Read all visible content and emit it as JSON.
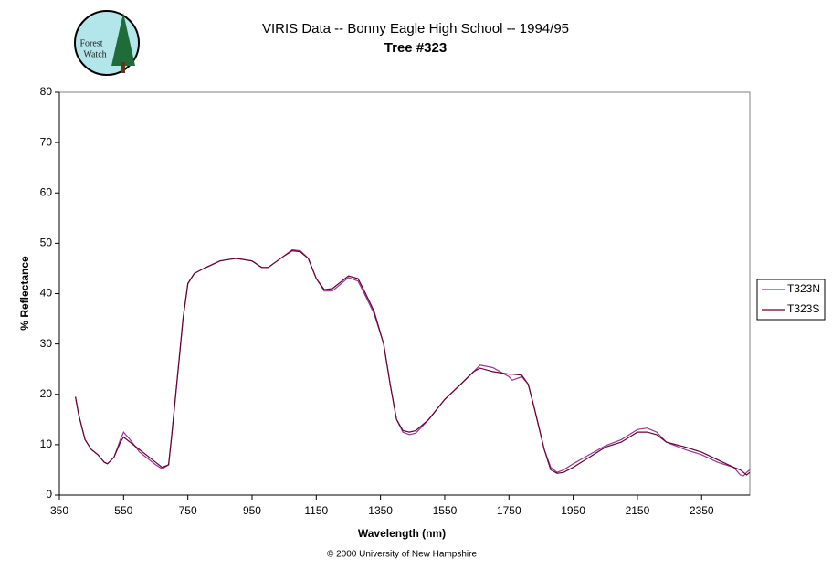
{
  "chart_data": {
    "type": "line",
    "title": [
      "VIRIS Data -- Bonny Eagle High School -- 1994/95",
      "Tree #323"
    ],
    "x_label": "Wavelength (nm)",
    "y_label": "% Reflectance",
    "x": [
      400,
      410,
      430,
      450,
      470,
      490,
      500,
      520,
      540,
      550,
      570,
      600,
      630,
      650,
      670,
      690,
      700,
      720,
      735,
      750,
      770,
      800,
      850,
      900,
      950,
      980,
      1000,
      1050,
      1075,
      1100,
      1125,
      1150,
      1175,
      1200,
      1250,
      1280,
      1300,
      1330,
      1360,
      1380,
      1400,
      1420,
      1440,
      1460,
      1500,
      1550,
      1600,
      1640,
      1660,
      1700,
      1750,
      1760,
      1790,
      1810,
      1830,
      1860,
      1880,
      1900,
      1920,
      1950,
      2000,
      2050,
      2100,
      2150,
      2180,
      2210,
      2240,
      2300,
      2350,
      2400,
      2450,
      2470,
      2480,
      2490,
      2500
    ],
    "series": [
      {
        "name": "T323N",
        "color": "#993399",
        "values": [
          19.5,
          16,
          11,
          9,
          8,
          6.5,
          6.2,
          7.5,
          11,
          12.5,
          11,
          8.5,
          7,
          6,
          5.2,
          6,
          12,
          25,
          35,
          42,
          44,
          45,
          46.5,
          47,
          46.5,
          45.2,
          45.2,
          47.5,
          48.7,
          48.5,
          47,
          43,
          40.5,
          40.5,
          43.2,
          42.5,
          40,
          36,
          30,
          22,
          15,
          12.5,
          12,
          12.3,
          15,
          19,
          22,
          24.5,
          25.8,
          25.3,
          23.5,
          22.8,
          23.5,
          22,
          17,
          9,
          5.5,
          4.5,
          5,
          6.2,
          8,
          9.8,
          11,
          13,
          13.3,
          12.5,
          10.5,
          9,
          8,
          6.5,
          5.5,
          4,
          3.8,
          4.5,
          5
        ]
      },
      {
        "name": "T323S",
        "color": "#660033",
        "values": [
          19.5,
          16,
          11,
          9,
          8,
          6.5,
          6.2,
          7.5,
          10.5,
          11.5,
          10.5,
          9,
          7.5,
          6.5,
          5.5,
          6,
          12,
          25,
          35,
          42,
          44,
          45,
          46.5,
          47,
          46.5,
          45.2,
          45.2,
          47.5,
          48.5,
          48.3,
          47,
          43,
          40.8,
          41,
          43.5,
          43,
          40.5,
          36.5,
          30,
          22,
          15,
          12.8,
          12.5,
          12.8,
          15,
          19,
          22,
          24.5,
          25.2,
          24.5,
          24,
          24,
          23.8,
          22,
          17,
          9,
          5,
          4.3,
          4.5,
          5.5,
          7.5,
          9.5,
          10.5,
          12.5,
          12.5,
          12,
          10.5,
          9.5,
          8.5,
          7,
          5.5,
          5,
          4.5,
          4,
          4.5
        ]
      }
    ],
    "xlim": [
      350,
      2500
    ],
    "xticks": [
      350,
      550,
      750,
      950,
      1150,
      1350,
      1550,
      1750,
      1950,
      2150,
      2350
    ],
    "ylim": [
      0,
      80
    ],
    "yticks": [
      0,
      10,
      20,
      30,
      40,
      50,
      60,
      70,
      80
    ],
    "legend": "right",
    "logo_text": [
      "Forest",
      "Watch"
    ],
    "footer": "© 2000 University of New Hampshire"
  }
}
